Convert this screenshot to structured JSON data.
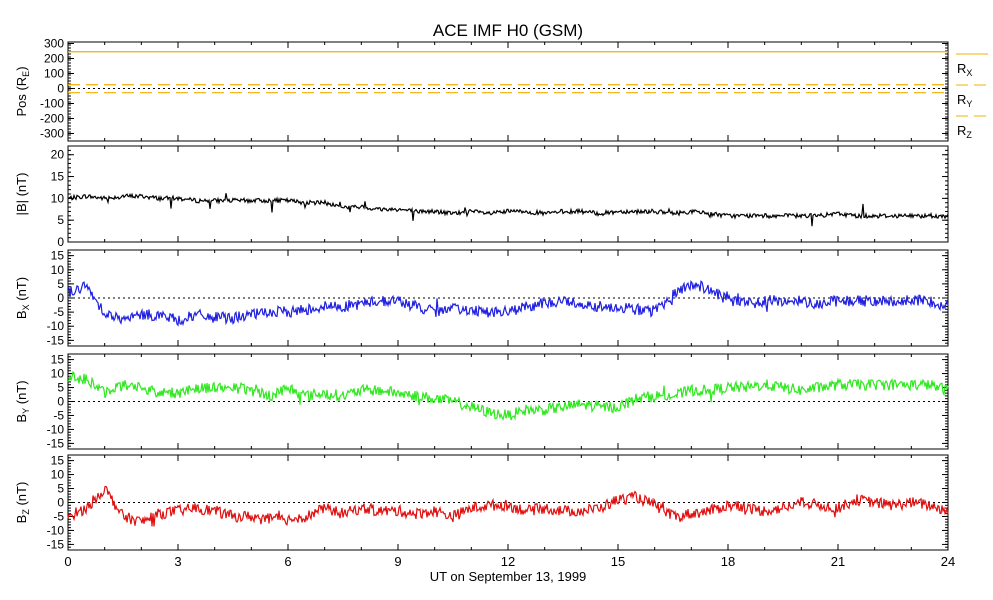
{
  "title": "ACE IMF H0 (GSM)",
  "colors": {
    "axis": "#000000",
    "pos": "#f0b000",
    "bmag": "#000000",
    "bx": "#2020e0",
    "by": "#30e820",
    "bz": "#e01010"
  },
  "chart_data": [
    {
      "type": "line",
      "id": "pos",
      "ylabel": "Pos (R",
      "ylabel_sub": "E",
      "ylabel_tail": ")",
      "ylim": [
        -350,
        310
      ],
      "yticks": [
        300,
        200,
        100,
        0,
        -100,
        -200,
        -300
      ],
      "zero_line": true,
      "x": [
        0,
        24
      ],
      "series": [
        {
          "name": "R",
          "sub": "X",
          "values": [
            245,
            245
          ],
          "style": "solid"
        },
        {
          "name": "R",
          "sub": "Y",
          "values": [
            25,
            25
          ],
          "style": "dashed"
        },
        {
          "name": "R",
          "sub": "Z",
          "values": [
            -28,
            -28
          ],
          "style": "dashed"
        }
      ]
    },
    {
      "type": "line",
      "id": "bmag",
      "ylabel": "|B| (nT)",
      "ylim": [
        0,
        22
      ],
      "yticks": [
        20,
        15,
        10,
        5,
        0
      ],
      "zero_line": false,
      "x": [
        0,
        0.5,
        1,
        1.5,
        2,
        2.5,
        3,
        3.5,
        4,
        4.5,
        5,
        5.5,
        6,
        6.5,
        7,
        7.5,
        8,
        8.5,
        9,
        9.5,
        10,
        10.5,
        11,
        11.5,
        12,
        12.5,
        13,
        13.5,
        14,
        14.5,
        15,
        15.5,
        16,
        16.5,
        17,
        17.5,
        18,
        18.5,
        19,
        19.5,
        20,
        20.5,
        21,
        21.5,
        22,
        22.5,
        23,
        23.5,
        24
      ],
      "series": [
        {
          "name": "|B|",
          "values": [
            10,
            10.5,
            10,
            10.5,
            10.5,
            10,
            10,
            9.5,
            9.5,
            9.5,
            9.5,
            9.5,
            9.5,
            9,
            9,
            8,
            8,
            7.5,
            7.5,
            7,
            7,
            6.5,
            7,
            6.5,
            7,
            7,
            6.5,
            7,
            7,
            6.5,
            7,
            7,
            7,
            6.5,
            7,
            6.5,
            6,
            6,
            6,
            6,
            6,
            6,
            6.5,
            6,
            6,
            6,
            6,
            6,
            6
          ]
        }
      ]
    },
    {
      "type": "line",
      "id": "bx",
      "ylabel": "B",
      "ylabel_sub": "X",
      "ylabel_tail": " (nT)",
      "ylim": [
        -17,
        17
      ],
      "yticks": [
        15,
        10,
        5,
        0,
        -5,
        -10,
        -15
      ],
      "zero_line": true,
      "x": [
        0,
        0.5,
        1,
        1.5,
        2,
        2.5,
        3,
        3.5,
        4,
        4.5,
        5,
        5.5,
        6,
        6.5,
        7,
        7.5,
        8,
        8.5,
        9,
        9.5,
        10,
        10.5,
        11,
        11.5,
        12,
        12.5,
        13,
        13.5,
        14,
        14.5,
        15,
        15.5,
        16,
        16.5,
        17,
        17.5,
        18,
        18.5,
        19,
        19.5,
        20,
        20.5,
        21,
        21.5,
        22,
        22.5,
        23,
        23.5,
        24
      ],
      "series": [
        {
          "name": "B_X",
          "values": [
            2,
            4,
            -5,
            -8,
            -6,
            -6,
            -8,
            -6,
            -7,
            -7,
            -6,
            -5,
            -5,
            -4,
            -3,
            -3,
            -2,
            -1,
            -1,
            -3,
            -5,
            -4,
            -4,
            -5,
            -5,
            -3,
            -2,
            -1,
            -2,
            -3,
            -3,
            -4,
            -5,
            1,
            5,
            3,
            -1,
            -2,
            -1,
            -1,
            -1,
            -2,
            -1,
            -1,
            -1,
            -1,
            -1,
            -1,
            -3
          ]
        }
      ]
    },
    {
      "type": "line",
      "id": "by",
      "ylabel": "B",
      "ylabel_sub": "Y",
      "ylabel_tail": " (nT)",
      "ylim": [
        -17,
        17
      ],
      "yticks": [
        15,
        10,
        5,
        0,
        -5,
        -10,
        -15
      ],
      "zero_line": true,
      "x": [
        0,
        0.5,
        1,
        1.5,
        2,
        2.5,
        3,
        3.5,
        4,
        4.5,
        5,
        5.5,
        6,
        6.5,
        7,
        7.5,
        8,
        8.5,
        9,
        9.5,
        10,
        10.5,
        11,
        11.5,
        12,
        12.5,
        13,
        13.5,
        14,
        14.5,
        15,
        15.5,
        16,
        16.5,
        17,
        17.5,
        18,
        18.5,
        19,
        19.5,
        20,
        20.5,
        21,
        21.5,
        22,
        22.5,
        23,
        23.5,
        24
      ],
      "series": [
        {
          "name": "B_Y",
          "values": [
            9,
            8,
            3,
            6,
            5,
            3,
            3,
            5,
            5,
            5,
            4,
            2,
            5,
            2,
            3,
            2,
            4,
            4,
            3,
            2,
            1,
            0,
            -2,
            -4,
            -5,
            -3,
            -3,
            -2,
            -1,
            -2,
            -2,
            1,
            2,
            2,
            4,
            4,
            5,
            5,
            6,
            5,
            4,
            5,
            6,
            6,
            6,
            6,
            6,
            6,
            4
          ]
        }
      ]
    },
    {
      "type": "line",
      "id": "bz",
      "ylabel": "B",
      "ylabel_sub": "Z",
      "ylabel_tail": " (nT)",
      "ylim": [
        -17,
        17
      ],
      "yticks": [
        15,
        10,
        5,
        0,
        -5,
        -10,
        -15
      ],
      "zero_line": true,
      "xlabel": "UT on September 13, 1999",
      "xticks": [
        0,
        3,
        6,
        9,
        12,
        15,
        18,
        21,
        24
      ],
      "x": [
        0,
        0.5,
        1,
        1.5,
        2,
        2.5,
        3,
        3.5,
        4,
        4.5,
        5,
        5.5,
        6,
        6.5,
        7,
        7.5,
        8,
        8.5,
        9,
        9.5,
        10,
        10.5,
        11,
        11.5,
        12,
        12.5,
        13,
        13.5,
        14,
        14.5,
        15,
        15.5,
        16,
        16.5,
        17,
        17.5,
        18,
        18.5,
        19,
        19.5,
        20,
        20.5,
        21,
        21.5,
        22,
        22.5,
        23,
        23.5,
        24
      ],
      "series": [
        {
          "name": "B_Z",
          "values": [
            -5,
            -2,
            5,
            -5,
            -7,
            -4,
            -3,
            -2,
            -3,
            -5,
            -5,
            -6,
            -6,
            -5,
            -2,
            -4,
            -2,
            -3,
            -3,
            -4,
            -3,
            -5,
            -2,
            -1,
            -1,
            -3,
            -2,
            -3,
            -3,
            -2,
            1,
            2,
            -1,
            -5,
            -4,
            -3,
            -1,
            -2,
            -3,
            -2,
            0,
            -1,
            -2,
            1,
            0,
            -1,
            0,
            -1,
            -3
          ]
        }
      ]
    }
  ]
}
